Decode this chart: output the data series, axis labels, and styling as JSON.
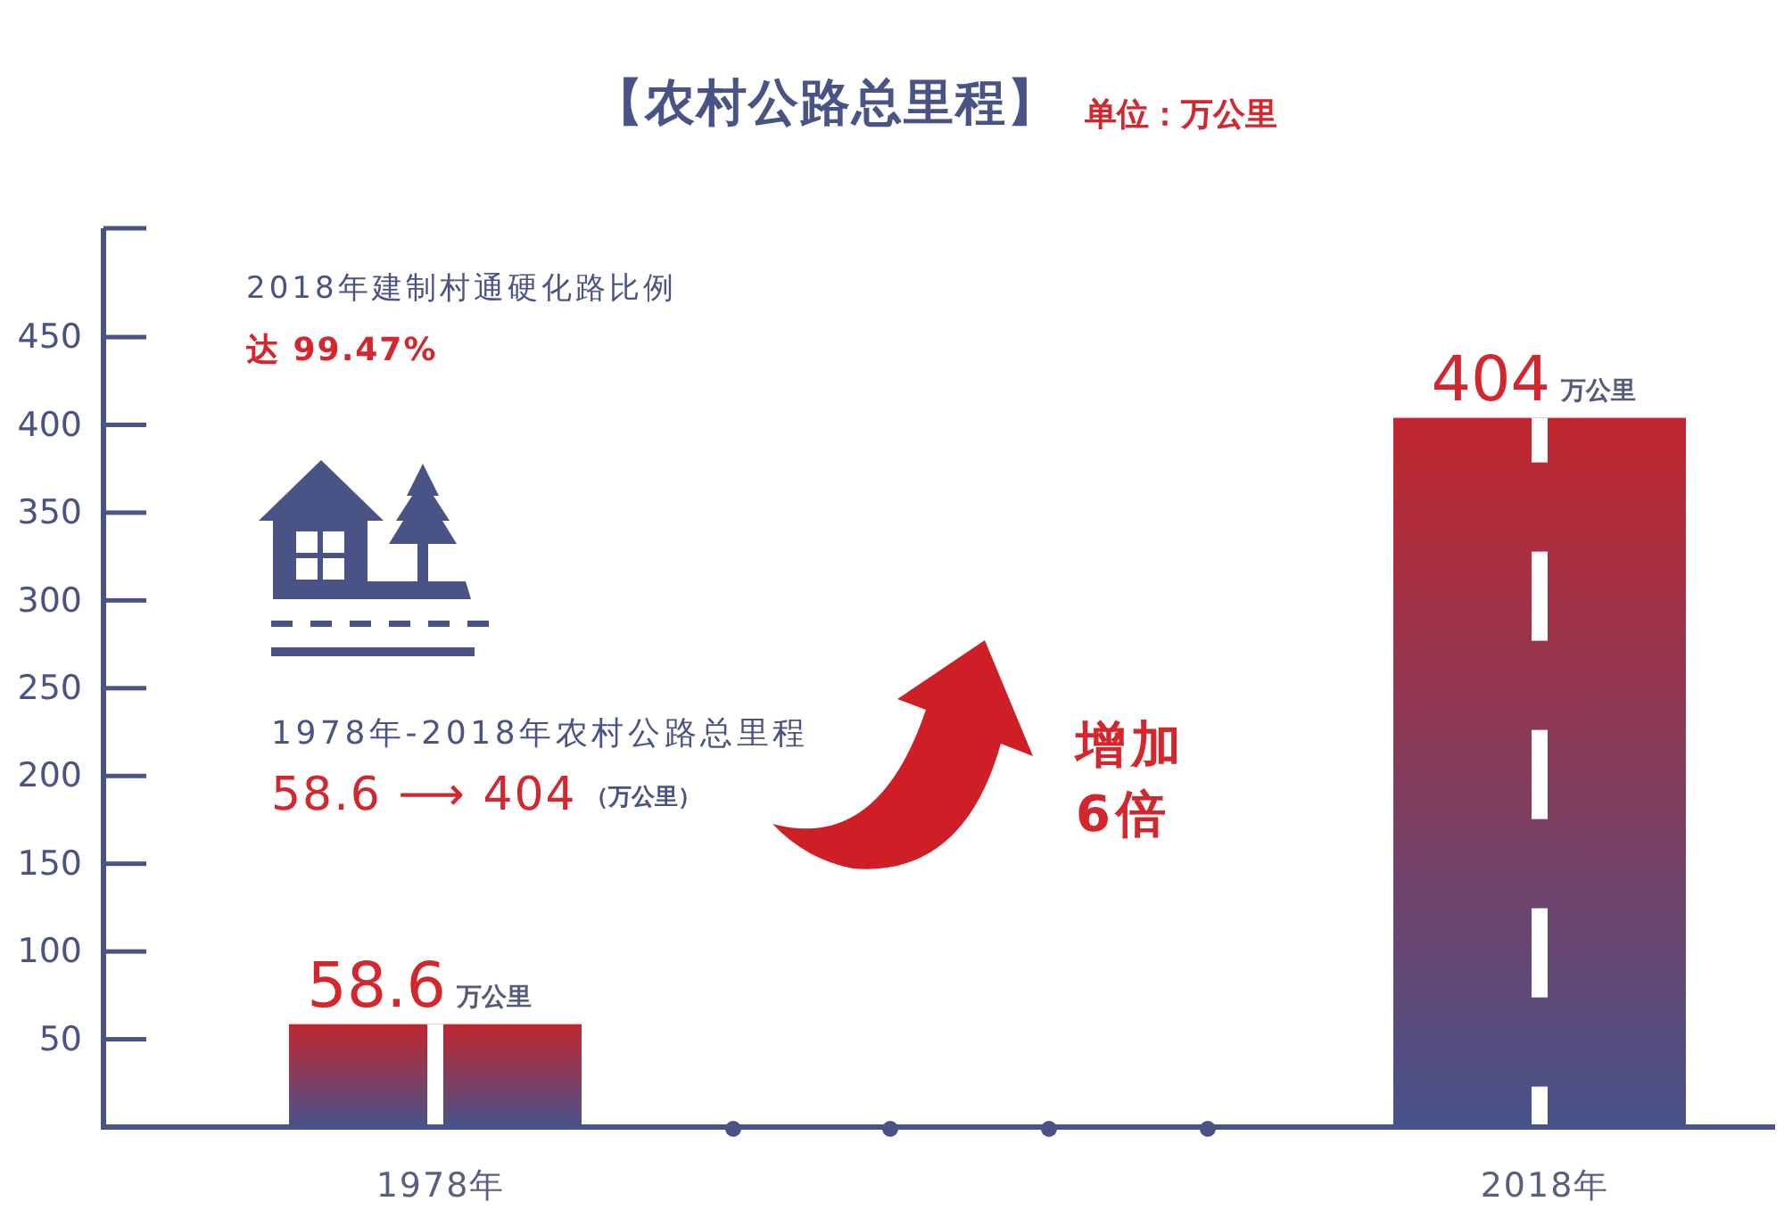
{
  "chart_data": {
    "type": "bar",
    "title": "【农村公路总里程】",
    "subtitle": "单位：万公里",
    "categories": [
      "1978年",
      "2018年"
    ],
    "values": [
      58.6,
      404
    ],
    "color": "#c0262d",
    "ylim": [
      0,
      512
    ],
    "yticks": [
      50,
      100,
      150,
      200,
      250,
      300,
      350,
      400,
      450
    ],
    "data_labels": true,
    "annotations": [
      {
        "text": "万公里",
        "x": "1978年",
        "y": 58.6
      },
      {
        "text": "万公里",
        "x": "2018年",
        "y": 404
      },
      "2018年建制村通硬化路比例",
      "达 99.47%",
      "1978年-2018年农村公路总里程",
      "58.6 ⟶ 404",
      "（万公里）",
      "增加",
      "6倍"
    ]
  }
}
